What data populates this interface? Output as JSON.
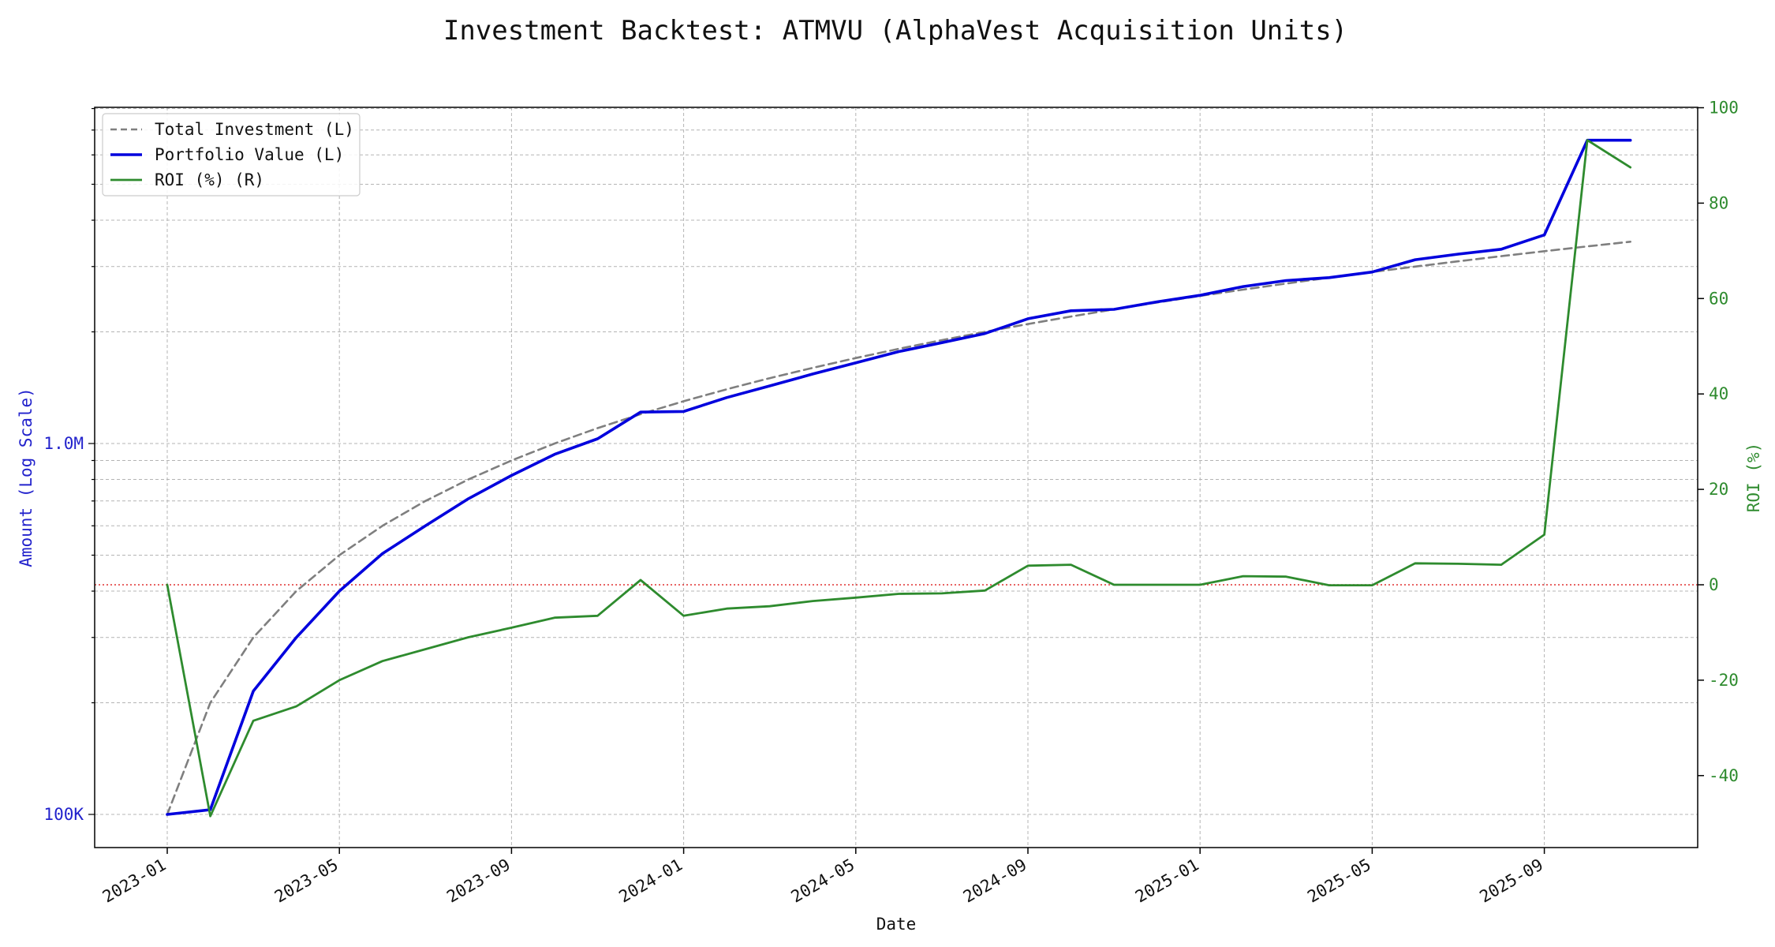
{
  "chart_data": {
    "type": "line",
    "title": "Investment Backtest: ATMVU (AlphaVest Acquisition Units)",
    "xlabel": "Date",
    "ylabel_left": "Amount (Log Scale)",
    "ylabel_right": "ROI (%)",
    "y_left_scale": "log",
    "y_left_ticks": [
      {
        "value": 100000,
        "label": "100K"
      },
      {
        "value": 1000000,
        "label": "1.0M"
      }
    ],
    "y_right_range": [
      -55,
      100
    ],
    "y_right_ticks": [
      -40,
      -20,
      0,
      20,
      40,
      60,
      80,
      100
    ],
    "x_ticks": [
      "2023-01",
      "2023-05",
      "2023-09",
      "2024-01",
      "2024-05",
      "2024-09",
      "2025-01",
      "2025-05",
      "2025-09"
    ],
    "grid": true,
    "legend_position": "top-left",
    "zero_line": {
      "value": 0,
      "axis": "right",
      "color": "#e03030"
    },
    "x": [
      "2023-01",
      "2023-02",
      "2023-03",
      "2023-04",
      "2023-05",
      "2023-06",
      "2023-07",
      "2023-08",
      "2023-09",
      "2023-10",
      "2023-11",
      "2023-12",
      "2024-01",
      "2024-02",
      "2024-03",
      "2024-04",
      "2024-05",
      "2024-06",
      "2024-07",
      "2024-08",
      "2024-09",
      "2024-10",
      "2024-11",
      "2024-12",
      "2025-01",
      "2025-02",
      "2025-03",
      "2025-04",
      "2025-05",
      "2025-06",
      "2025-07",
      "2025-08",
      "2025-09",
      "2025-10",
      "2025-11"
    ],
    "series": [
      {
        "name": "Total Investment (L)",
        "axis": "left",
        "color": "#7f7f7f",
        "style": "dashed",
        "values": [
          100000,
          200000,
          300000,
          400000,
          500000,
          600000,
          700000,
          800000,
          900000,
          1000000,
          1100000,
          1200000,
          1300000,
          1400000,
          1500000,
          1600000,
          1700000,
          1800000,
          1900000,
          2000000,
          2100000,
          2200000,
          2300000,
          2400000,
          2500000,
          2600000,
          2700000,
          2800000,
          2900000,
          3000000,
          3100000,
          3200000,
          3300000,
          3400000,
          3500000
        ]
      },
      {
        "name": "Portfolio Value (L)",
        "axis": "left",
        "color": "#0000dd",
        "style": "solid",
        "values": [
          100000,
          103000,
          215000,
          300000,
          400000,
          505000,
          600000,
          710000,
          820000,
          935000,
          1030000,
          1215000,
          1220000,
          1330000,
          1430000,
          1540000,
          1650000,
          1770000,
          1870000,
          1980000,
          2170000,
          2280000,
          2300000,
          2410000,
          2510000,
          2650000,
          2750000,
          2800000,
          2900000,
          3130000,
          3240000,
          3340000,
          3650000,
          6570000,
          6570000
        ]
      },
      {
        "name": "ROI (%) (R)",
        "axis": "right",
        "color": "#2e8b2e",
        "style": "solid",
        "values": [
          0,
          -48.5,
          -28.5,
          -25.5,
          -20,
          -16,
          -13.5,
          -11,
          -9,
          -6.9,
          -6.5,
          1,
          -6.5,
          -5,
          -4.5,
          -3.4,
          -2.7,
          -1.9,
          -1.8,
          -1.2,
          4,
          4.2,
          0,
          0,
          0,
          1.8,
          1.7,
          -0.1,
          -0.1,
          4.5,
          4.4,
          4.2,
          10.5,
          93.2,
          87.5
        ]
      }
    ]
  }
}
